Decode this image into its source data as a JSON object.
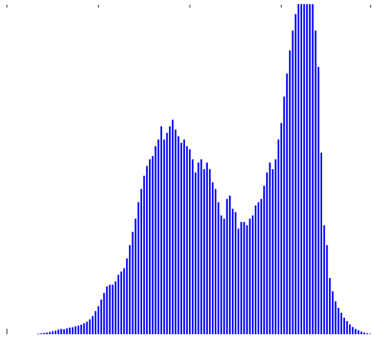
{
  "chart_data": {
    "type": "bar",
    "title": "",
    "xlabel": "",
    "ylabel": "",
    "grid": false,
    "legend": "none",
    "bar_color": "#0000ff",
    "axis_tick_color": "#000000",
    "x_range": [
      0,
      255
    ],
    "y_range": [
      0,
      100
    ],
    "x_ticks": [
      0,
      64,
      128,
      192,
      256
    ],
    "x": [
      22,
      24,
      26,
      28,
      30,
      32,
      34,
      36,
      38,
      40,
      42,
      44,
      46,
      48,
      50,
      52,
      54,
      56,
      58,
      60,
      62,
      64,
      66,
      68,
      70,
      72,
      74,
      76,
      78,
      80,
      82,
      84,
      86,
      88,
      90,
      92,
      94,
      96,
      98,
      100,
      102,
      104,
      106,
      108,
      110,
      112,
      114,
      116,
      118,
      120,
      122,
      124,
      126,
      128,
      130,
      132,
      134,
      136,
      138,
      140,
      142,
      144,
      146,
      148,
      150,
      152,
      154,
      156,
      158,
      160,
      162,
      164,
      166,
      168,
      170,
      172,
      174,
      176,
      178,
      180,
      182,
      184,
      186,
      188,
      190,
      192,
      194,
      196,
      198,
      200,
      202,
      204,
      206,
      208,
      210,
      212,
      214,
      216,
      218,
      220,
      222,
      224,
      226,
      228,
      230,
      232,
      234,
      236,
      238,
      240,
      242,
      244,
      246,
      248,
      250,
      252,
      254
    ],
    "values": [
      0.2,
      0.3,
      0.4,
      0.5,
      0.7,
      0.9,
      1.1,
      1.4,
      1.6,
      1.5,
      1.8,
      2.0,
      2.1,
      2.4,
      2.6,
      2.9,
      3.3,
      3.8,
      4.5,
      5.5,
      7.0,
      8.5,
      10.5,
      12.5,
      14.5,
      15.0,
      15.0,
      16.0,
      18.0,
      19.0,
      20.0,
      23.0,
      27.0,
      31.0,
      35.0,
      40.0,
      44.0,
      48.0,
      51.0,
      53.0,
      54.0,
      57.0,
      59.0,
      63.0,
      59.0,
      61.0,
      63.0,
      65.0,
      62.0,
      60.0,
      58.0,
      59.0,
      57.0,
      56.0,
      53.0,
      49.0,
      52.0,
      53.0,
      50.0,
      52.0,
      50.0,
      46.0,
      44.0,
      40.0,
      36.0,
      35.0,
      41.0,
      42.0,
      38.0,
      37.0,
      32.0,
      34.0,
      34.0,
      33.0,
      35.0,
      36.0,
      39.0,
      40.0,
      41.0,
      45.0,
      49.0,
      52.0,
      50.0,
      53.0,
      59.0,
      64.0,
      72.0,
      79.0,
      86.0,
      92.0,
      97.0,
      100.0,
      100.0,
      100.0,
      100.0,
      100.0,
      100.0,
      92.0,
      81.0,
      55.0,
      33.0,
      27.0,
      17.0,
      13.0,
      10.0,
      8.0,
      6.5,
      5.0,
      4.0,
      3.0,
      2.2,
      1.6,
      1.2,
      0.8,
      0.5,
      0.3,
      0.2
    ]
  }
}
